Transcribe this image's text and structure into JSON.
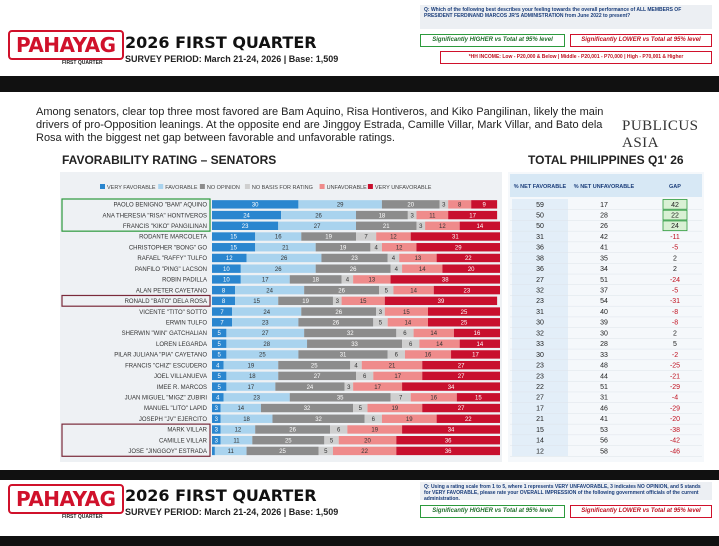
{
  "header": {
    "logo": "PAHAYAG",
    "logo_sub": "FIRST QUARTER",
    "title": "2026 FIRST QUARTER",
    "survey": "SURVEY PERIOD: March 21-24, 2026 | Base: 1,509",
    "question": "Q: Which of the following best describes your feeling towards the overall performance of ALL MEMBERS OF PRESIDENT FERDINAND MARCOS JR'S ADMINISTRATION from June 2022 to present?",
    "higher": "Significantly HIGHER vs Total at 95% level",
    "lower": "Significantly LOWER vs Total at 95% level",
    "income": "*HH INCOME: Low - P20,000 & Below | Middle - P20,001 - P70,000 | High - P70,001 & Higher"
  },
  "body": {
    "paragraph": "Among senators, clear top three most favored are Bam Aquino, Risa Hontiveros, and Kiko Pangilinan, likely the main drivers of pro-Opposition leanings. At the opposite end are Jinggoy Estrada, Camille Villar, Mark Villar, and Bato dela Rosa with the biggest net gap between favorable and unfavorable ratings.",
    "brand": "PUBLICUS ASIA"
  },
  "chart_data": {
    "type": "stacked-bar",
    "orientation": "horizontal",
    "title": "FAVORABILITY RATING – SENATORS",
    "xlim": [
      0,
      100
    ],
    "categories": [
      "PAOLO BENIGNO \"BAM\" AQUINO",
      "ANA THERESIA \"RISA\" HONTIVEROS",
      "FRANCIS \"KIKO\" PANGILINAN",
      "RODANTE MARCOLETA",
      "CHRISTOPHER \"BONG\" GO",
      "RAFAEL \"RAFFY\" TULFO",
      "PANFILO \"PING\" LACSON",
      "ROBIN PADILLA",
      "ALAN PETER CAYETANO",
      "RONALD \"BATO\" DELA ROSA",
      "VICENTE \"TITO\" SOTTO",
      "ERWIN TULFO",
      "SHERWIN \"WIN\" GATCHALIAN",
      "LOREN LEGARDA",
      "PILAR JULIANA \"PIA\" CAYETANO",
      "FRANCIS \"CHIZ\" ESCUDERO",
      "JOEL VILLANUEVA",
      "IMEE R. MARCOS",
      "JUAN MIGUEL \"MIGZ\" ZUBIRI",
      "MANUEL \"LITO\" LAPID",
      "JOSEPH \"JV\" EJERCITO",
      "MARK VILLAR",
      "CAMILLE VILLAR",
      "JOSE \"JINGGOY\" ESTRADA"
    ],
    "series": [
      {
        "name": "VERY FAVORABLE",
        "color": "#2a86cf",
        "values": [
          30,
          24,
          23,
          15,
          15,
          12,
          10,
          10,
          8,
          8,
          7,
          7,
          5,
          5,
          5,
          4,
          5,
          5,
          4,
          3,
          3,
          3,
          3,
          1
        ]
      },
      {
        "name": "FAVORABLE",
        "color": "#a9d3ee",
        "values": [
          29,
          26,
          27,
          16,
          21,
          26,
          26,
          17,
          24,
          15,
          24,
          23,
          27,
          28,
          25,
          19,
          18,
          17,
          23,
          14,
          18,
          12,
          11,
          11
        ]
      },
      {
        "name": "NO OPINION",
        "color": "#8c8c8c",
        "values": [
          20,
          18,
          21,
          19,
          19,
          23,
          26,
          18,
          26,
          19,
          26,
          26,
          32,
          33,
          31,
          25,
          27,
          24,
          35,
          32,
          32,
          26,
          25,
          25
        ]
      },
      {
        "name": "NO BASIS FOR RATING",
        "color": "#cfcfcf",
        "values": [
          3,
          3,
          3,
          7,
          4,
          4,
          4,
          4,
          5,
          3,
          3,
          5,
          6,
          6,
          6,
          4,
          6,
          3,
          7,
          5,
          6,
          6,
          5,
          5
        ]
      },
      {
        "name": "UNFAVORABLE",
        "color": "#ef8b8b",
        "values": [
          8,
          11,
          12,
          12,
          12,
          13,
          14,
          13,
          14,
          15,
          15,
          14,
          14,
          14,
          16,
          21,
          17,
          17,
          16,
          19,
          19,
          19,
          20,
          22
        ]
      },
      {
        "name": "VERY UNFAVORABLE",
        "color": "#c8102e",
        "values": [
          9,
          17,
          14,
          31,
          29,
          22,
          20,
          38,
          23,
          39,
          25,
          25,
          16,
          14,
          17,
          27,
          27,
          34,
          15,
          27,
          22,
          34,
          36,
          36
        ]
      }
    ]
  },
  "table": {
    "title": "TOTAL PHILIPPINES Q1' 26",
    "columns": [
      "% NET FAVORABLE",
      "% NET UNFAVORABLE",
      "GAP"
    ],
    "rows": [
      [
        59,
        17,
        42
      ],
      [
        50,
        28,
        22
      ],
      [
        50,
        26,
        24
      ],
      [
        31,
        42,
        -11
      ],
      [
        36,
        41,
        -5
      ],
      [
        38,
        35,
        2
      ],
      [
        36,
        34,
        2
      ],
      [
        27,
        51,
        -24
      ],
      [
        32,
        37,
        -5
      ],
      [
        23,
        54,
        -31
      ],
      [
        31,
        40,
        -8
      ],
      [
        30,
        39,
        -8
      ],
      [
        32,
        30,
        2
      ],
      [
        33,
        28,
        5
      ],
      [
        30,
        33,
        -2
      ],
      [
        23,
        48,
        -25
      ],
      [
        23,
        44,
        -21
      ],
      [
        22,
        51,
        -29
      ],
      [
        27,
        31,
        -4
      ],
      [
        17,
        46,
        -29
      ],
      [
        21,
        41,
        -20
      ],
      [
        15,
        53,
        -38
      ],
      [
        14,
        56,
        -42
      ],
      [
        12,
        58,
        -46
      ]
    ]
  },
  "footer": {
    "logo": "PAHAYAG",
    "logo_sub": "FIRST QUARTER",
    "title": "2026 FIRST QUARTER",
    "survey": "SURVEY PERIOD: March 21-24, 2026 | Base: 1,509",
    "note": "Q: Using a rating scale from 1 to 5, where 1 represents VERY UNFAVORABLE, 3 indicates NO OPINION, and 5 stands for VERY FAVORABLE, please rate your OVERALL IMPRESSION of the following government officials of the current administration.",
    "higher": "Significantly HIGHER vs Total at 95% level",
    "lower": "Significantly LOWER vs Total at 95% level"
  }
}
